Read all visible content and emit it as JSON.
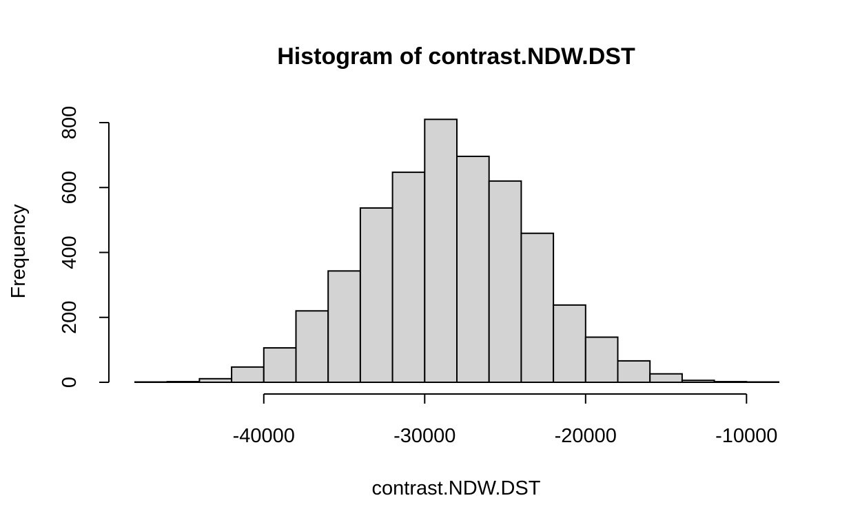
{
  "chart_data": {
    "type": "bar",
    "title": "Histogram of contrast.NDW.DST",
    "xlabel": "contrast.NDW.DST",
    "ylabel": "Frequency",
    "bin_edges": [
      -48000,
      -46000,
      -44000,
      -42000,
      -40000,
      -38000,
      -36000,
      -34000,
      -32000,
      -30000,
      -28000,
      -26000,
      -24000,
      -22000,
      -20000,
      -18000,
      -16000,
      -14000,
      -12000,
      -10000,
      -8000
    ],
    "values": [
      1,
      2,
      11,
      47,
      106,
      220,
      343,
      537,
      647,
      810,
      696,
      620,
      459,
      238,
      139,
      66,
      26,
      6,
      2,
      1
    ],
    "xlim": [
      -48000,
      -8000
    ],
    "ylim": [
      0,
      800
    ],
    "x_ticks": [
      -40000,
      -30000,
      -20000,
      -10000
    ],
    "x_tick_labels": [
      "-40000",
      "-30000",
      "-20000",
      "-10000"
    ],
    "y_ticks": [
      0,
      200,
      400,
      600,
      800
    ],
    "y_tick_labels": [
      "0",
      "200",
      "400",
      "600",
      "800"
    ],
    "bar_color": "#d3d3d3",
    "border_color": "#000000",
    "grid": false
  }
}
